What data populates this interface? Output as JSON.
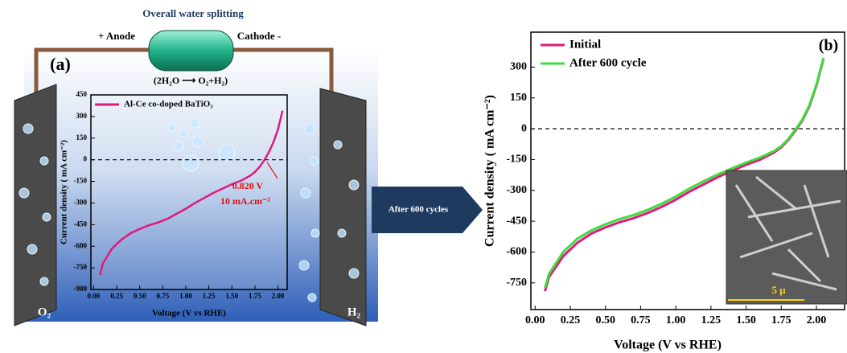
{
  "schematic": {
    "title": "Overall water splitting",
    "anode": "+ Anode",
    "cathode": "Cathode -",
    "reaction": "(2H₂O ⟶ O₂+H₂)",
    "o2": "O₂",
    "h2": "H₂",
    "arrow_label": "After 600 cycles",
    "scale_bar": "5 μ"
  },
  "chart_data": [
    {
      "type": "line",
      "panel_label": "(a)",
      "xlabel": "Voltage (V vs RHE)",
      "ylabel": "Current density ( mA cm⁻²)",
      "xlim": [
        -0.03,
        2.1
      ],
      "ylim": [
        -900,
        450
      ],
      "xticks": [
        {
          "value": 0,
          "label": "0.00"
        },
        {
          "value": 0.25,
          "label": "0.25"
        },
        {
          "value": 0.5,
          "label": "0.50"
        },
        {
          "value": 0.75,
          "label": "0.75"
        },
        {
          "value": 1,
          "label": "1.00"
        },
        {
          "value": 1.25,
          "label": "1.25"
        },
        {
          "value": 1.5,
          "label": "1.50"
        },
        {
          "value": 1.75,
          "label": "1.75"
        },
        {
          "value": 2,
          "label": "2.00"
        }
      ],
      "yticks": [
        450,
        300,
        150,
        0,
        -150,
        -300,
        -450,
        -600,
        -750,
        -900
      ],
      "hline": 0,
      "annotations": [
        "0.820 V",
        "10 mA.cm⁻²"
      ],
      "x": [
        0.07,
        0.1,
        0.2,
        0.3,
        0.4,
        0.5,
        0.6,
        0.7,
        0.8,
        0.9,
        1.0,
        1.1,
        1.2,
        1.3,
        1.4,
        1.5,
        1.6,
        1.7,
        1.75,
        1.8,
        1.85,
        1.9,
        1.95,
        2.0,
        2.05
      ],
      "series": [
        {
          "name": "Al-Ce co-doped BaTiO₃",
          "color": "#e0197d",
          "values": [
            -800,
            -720,
            -615,
            -555,
            -510,
            -480,
            -455,
            -435,
            -410,
            -375,
            -340,
            -300,
            -265,
            -230,
            -200,
            -170,
            -145,
            -110,
            -85,
            -50,
            -5,
            50,
            120,
            210,
            340
          ]
        }
      ]
    },
    {
      "type": "line",
      "panel_label": "(b)",
      "xlabel": "Voltage (V vs RHE)",
      "ylabel": "Current density ( mA cm⁻²)",
      "xlim": [
        -0.03,
        2.2
      ],
      "ylim": [
        -880,
        470
      ],
      "xticks": [
        {
          "value": 0,
          "label": "0.00"
        },
        {
          "value": 0.25,
          "label": "0.25"
        },
        {
          "value": 0.5,
          "label": "0.50"
        },
        {
          "value": 0.75,
          "label": "0.75"
        },
        {
          "value": 1,
          "label": "1.00"
        },
        {
          "value": 1.25,
          "label": "1.25"
        },
        {
          "value": 1.5,
          "label": "1.50"
        },
        {
          "value": 1.75,
          "label": "1.75"
        },
        {
          "value": 2,
          "label": "2.00"
        }
      ],
      "yticks": [
        300,
        150,
        0,
        -150,
        -300,
        -450,
        -600,
        -750
      ],
      "hline": 0,
      "x": [
        0.07,
        0.1,
        0.2,
        0.3,
        0.4,
        0.5,
        0.6,
        0.7,
        0.8,
        0.9,
        1.0,
        1.1,
        1.2,
        1.3,
        1.4,
        1.5,
        1.6,
        1.7,
        1.75,
        1.8,
        1.85,
        1.9,
        1.95,
        2.0,
        2.05
      ],
      "series": [
        {
          "name": "Initial",
          "color": "#e0197d",
          "values": [
            -790,
            -720,
            -620,
            -555,
            -510,
            -480,
            -455,
            -435,
            -410,
            -380,
            -345,
            -305,
            -270,
            -235,
            -205,
            -175,
            -150,
            -115,
            -90,
            -55,
            -10,
            40,
            110,
            210,
            340
          ]
        },
        {
          "name": "After 600 cycle",
          "color": "#3ddc3d",
          "values": [
            -775,
            -705,
            -600,
            -535,
            -495,
            -465,
            -440,
            -420,
            -395,
            -365,
            -330,
            -290,
            -255,
            -222,
            -193,
            -165,
            -140,
            -108,
            -85,
            -50,
            -5,
            45,
            115,
            215,
            345
          ]
        }
      ]
    }
  ]
}
